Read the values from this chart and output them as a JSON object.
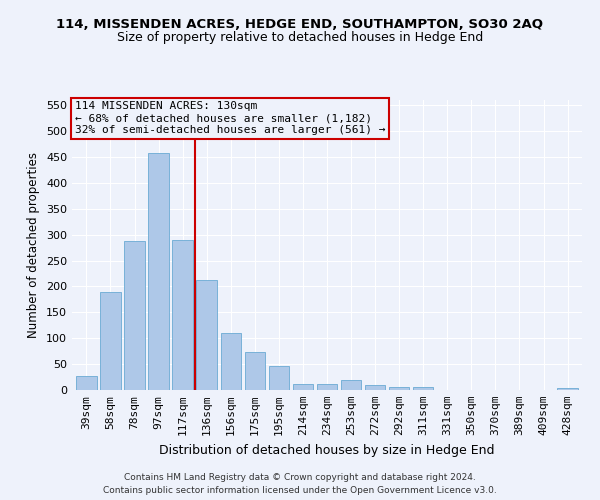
{
  "title": "114, MISSENDEN ACRES, HEDGE END, SOUTHAMPTON, SO30 2AQ",
  "subtitle": "Size of property relative to detached houses in Hedge End",
  "xlabel": "Distribution of detached houses by size in Hedge End",
  "ylabel": "Number of detached properties",
  "categories": [
    "39sqm",
    "58sqm",
    "78sqm",
    "97sqm",
    "117sqm",
    "136sqm",
    "156sqm",
    "175sqm",
    "195sqm",
    "214sqm",
    "234sqm",
    "253sqm",
    "272sqm",
    "292sqm",
    "311sqm",
    "331sqm",
    "350sqm",
    "370sqm",
    "389sqm",
    "409sqm",
    "428sqm"
  ],
  "values": [
    28,
    190,
    288,
    458,
    290,
    213,
    110,
    74,
    46,
    12,
    11,
    20,
    10,
    6,
    5,
    0,
    0,
    0,
    0,
    0,
    4
  ],
  "bar_color": "#aec8e8",
  "bar_edge_color": "#6aaad4",
  "vline_x_index": 4.5,
  "vline_color": "#cc0000",
  "annotation_line1": "114 MISSENDEN ACRES: 130sqm",
  "annotation_line2": "← 68% of detached houses are smaller (1,182)",
  "annotation_line3": "32% of semi-detached houses are larger (561) →",
  "annotation_box_color": "#cc0000",
  "ylim": [
    0,
    560
  ],
  "yticks": [
    0,
    50,
    100,
    150,
    200,
    250,
    300,
    350,
    400,
    450,
    500,
    550
  ],
  "footer_line1": "Contains HM Land Registry data © Crown copyright and database right 2024.",
  "footer_line2": "Contains public sector information licensed under the Open Government Licence v3.0.",
  "bg_color": "#eef2fb",
  "grid_color": "#ffffff",
  "title_fontsize": 9.5,
  "subtitle_fontsize": 9.0,
  "ylabel_fontsize": 8.5,
  "xlabel_fontsize": 9.0,
  "tick_fontsize": 8.0,
  "annot_fontsize": 8.0,
  "footer_fontsize": 6.5
}
